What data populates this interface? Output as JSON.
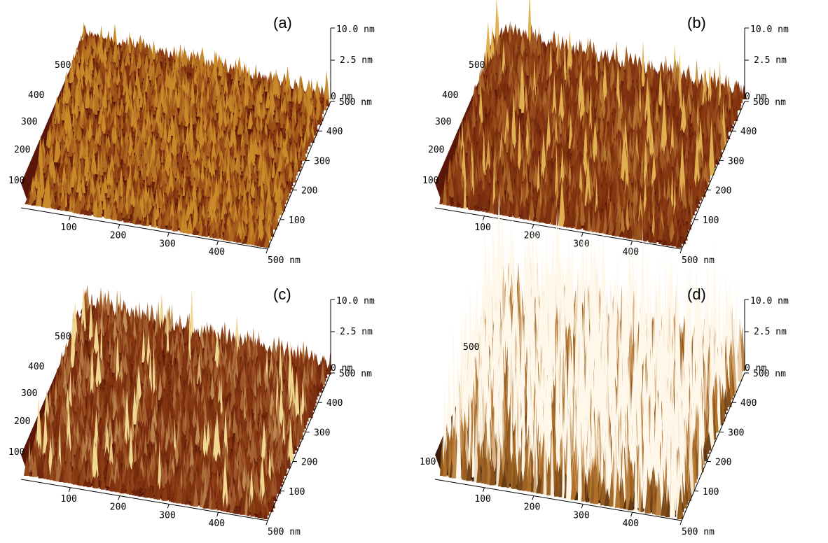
{
  "panels": [
    {
      "id": "a",
      "label": "(a)",
      "z_ticks": [
        "10.0 nm",
        "2.5 nm",
        "0 nm"
      ],
      "x_ticks": [
        "100",
        "200",
        "300",
        "400",
        "500 nm"
      ],
      "y_ticks": [
        "100",
        "200",
        "300",
        "400",
        "500 nm"
      ],
      "left_ticks": [
        "100",
        "200",
        "300",
        "400",
        "500"
      ],
      "roughness": "low",
      "colors": {
        "base": "#5a1608",
        "mid": "#8a3a12",
        "peak": "#c98a2a"
      }
    },
    {
      "id": "b",
      "label": "(b)",
      "z_ticks": [
        "10.0 nm",
        "2.5 nm",
        "0 nm"
      ],
      "x_ticks": [
        "100",
        "200",
        "300",
        "400",
        "500 nm"
      ],
      "y_ticks": [
        "100",
        "200",
        "300",
        "400",
        "500 nm"
      ],
      "left_ticks": [
        "100",
        "200",
        "300",
        "400",
        "500"
      ],
      "roughness": "medium",
      "colors": {
        "base": "#5a1608",
        "mid": "#8a3a12",
        "peak": "#e0b050"
      }
    },
    {
      "id": "c",
      "label": "(c)",
      "z_ticks": [
        "10.0 nm",
        "2.5 nm",
        "0 nm"
      ],
      "x_ticks": [
        "100",
        "200",
        "300",
        "400",
        "500 nm"
      ],
      "y_ticks": [
        "100",
        "200",
        "300",
        "400",
        "500 nm"
      ],
      "left_ticks": [
        "100",
        "200",
        "300",
        "400",
        "500"
      ],
      "roughness": "medium",
      "colors": {
        "base": "#5a1608",
        "mid": "#8a3a12",
        "peak": "#f0d890"
      }
    },
    {
      "id": "d",
      "label": "(d)",
      "z_ticks": [
        "10.0 nm",
        "2.5 nm",
        "0 nm"
      ],
      "x_ticks": [
        "100",
        "200",
        "300",
        "400",
        "500 nm"
      ],
      "y_ticks": [
        "100",
        "200",
        "300",
        "400",
        "500 nm"
      ],
      "left_ticks": [
        "100",
        "500"
      ],
      "roughness": "high",
      "colors": {
        "base": "#3a1a08",
        "mid": "#b07028",
        "peak": "#fff8ea"
      }
    }
  ]
}
